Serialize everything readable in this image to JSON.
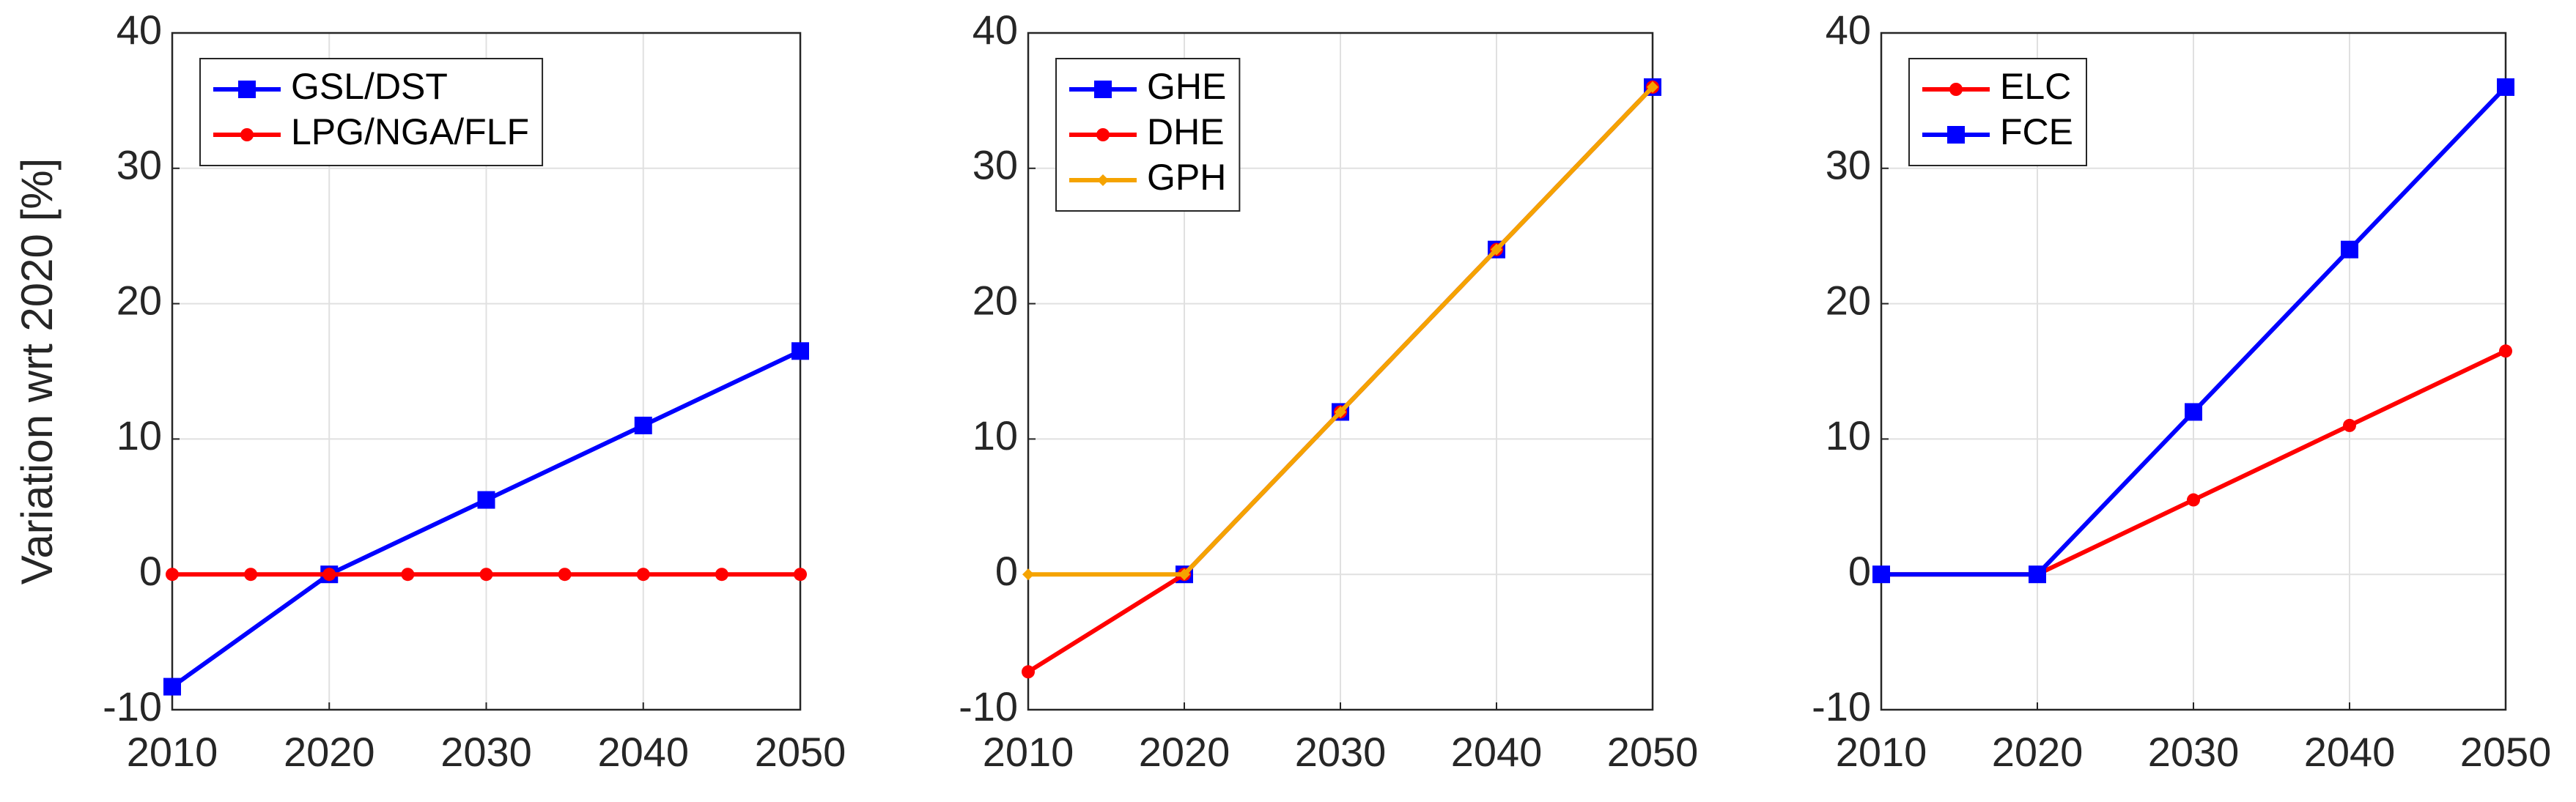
{
  "chart_data": [
    {
      "type": "line",
      "ylabel": "Variation wrt 2020 [%]",
      "xlim": [
        2010,
        2050
      ],
      "xticks": [
        2010,
        2020,
        2030,
        2040,
        2050
      ],
      "ylim": [
        -10,
        40
      ],
      "yticks": [
        -10,
        0,
        10,
        20,
        30,
        40
      ],
      "grid": true,
      "legend": "upper-left",
      "series": [
        {
          "name": "GSL/DST",
          "color": "#0000ff",
          "marker": "square",
          "x": [
            2010,
            2020,
            2030,
            2040,
            2050
          ],
          "values": [
            -8.3,
            0,
            5.5,
            11,
            16.5
          ]
        },
        {
          "name": "LPG/NGA/FLF",
          "color": "#ff0000",
          "marker": "circle",
          "x": [
            2010,
            2015,
            2020,
            2025,
            2030,
            2035,
            2040,
            2045,
            2050
          ],
          "values": [
            0,
            0,
            0,
            0,
            0,
            0,
            0,
            0,
            0
          ]
        }
      ]
    },
    {
      "type": "line",
      "xlim": [
        2010,
        2050
      ],
      "xticks": [
        2010,
        2020,
        2030,
        2040,
        2050
      ],
      "ylim": [
        -10,
        40
      ],
      "yticks": [
        -10,
        0,
        10,
        20,
        30,
        40
      ],
      "grid": true,
      "legend": "upper-left",
      "series": [
        {
          "name": "GHE",
          "color": "#0000ff",
          "marker": "square",
          "x": [
            2020,
            2030,
            2040,
            2050
          ],
          "values": [
            0,
            12,
            24,
            36
          ]
        },
        {
          "name": "DHE",
          "color": "#ff0000",
          "marker": "circle",
          "x": [
            2010,
            2020,
            2030,
            2040,
            2050
          ],
          "values": [
            -7.2,
            0,
            12,
            24,
            36
          ]
        },
        {
          "name": "GPH",
          "color": "#f5a300",
          "marker": "diamond",
          "x": [
            2010,
            2020,
            2030,
            2040,
            2050
          ],
          "values": [
            0,
            0,
            12,
            24,
            36
          ]
        }
      ]
    },
    {
      "type": "line",
      "xlim": [
        2010,
        2050
      ],
      "xticks": [
        2010,
        2020,
        2030,
        2040,
        2050
      ],
      "ylim": [
        -10,
        40
      ],
      "yticks": [
        -10,
        0,
        10,
        20,
        30,
        40
      ],
      "grid": true,
      "legend": "upper-left",
      "series": [
        {
          "name": "ELC",
          "color": "#ff0000",
          "marker": "circle",
          "x": [
            2010,
            2020,
            2030,
            2040,
            2050
          ],
          "values": [
            0,
            0,
            5.5,
            11,
            16.5
          ]
        },
        {
          "name": "FCE",
          "color": "#0000ff",
          "marker": "square",
          "x": [
            2010,
            2020,
            2030,
            2040,
            2050
          ],
          "values": [
            0,
            0,
            12,
            24,
            36
          ]
        }
      ]
    }
  ]
}
